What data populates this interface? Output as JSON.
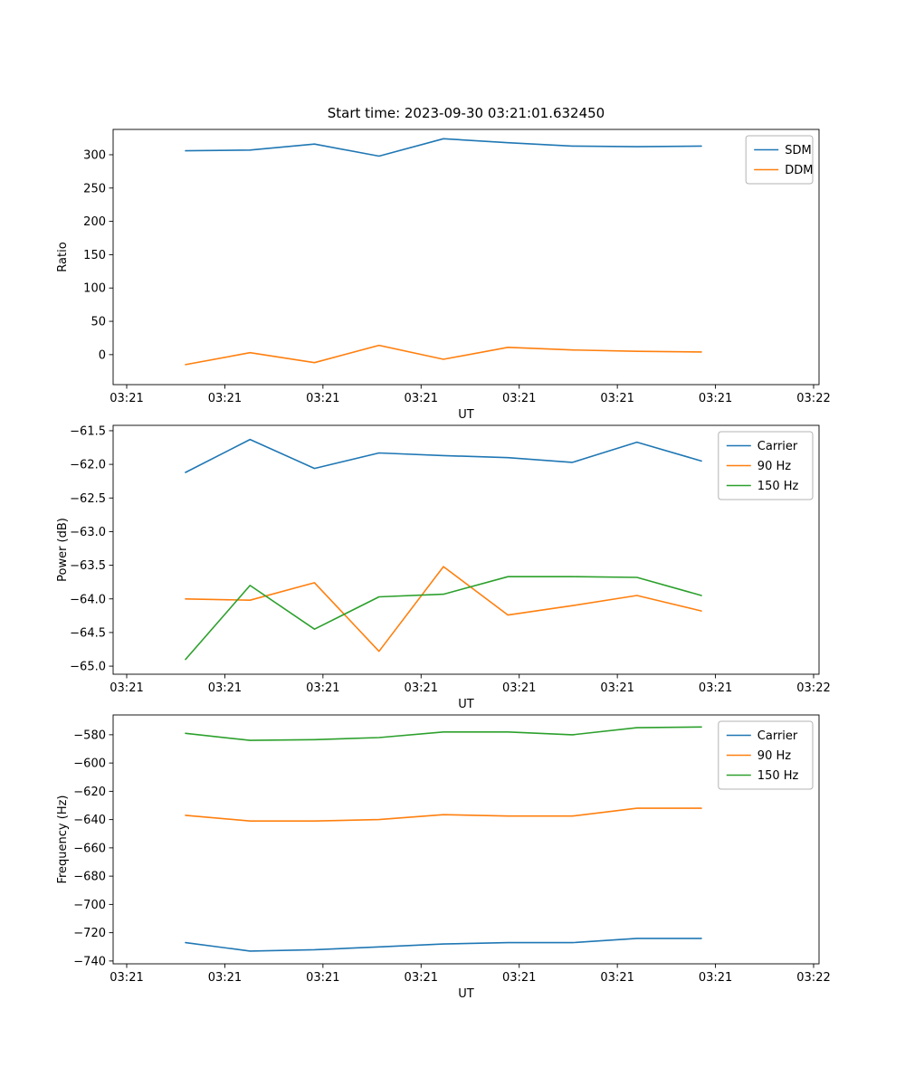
{
  "figure": {
    "title": "Start time: 2023-09-30 03:21:01.632450"
  },
  "chart_data": [
    {
      "type": "line",
      "title": "Start time: 2023-09-30 03:21:01.632450",
      "xlabel": "UT",
      "ylabel": "Ratio",
      "x_tick_labels": [
        "03:21",
        "03:21",
        "03:21",
        "03:21",
        "03:21",
        "03:21",
        "03:21",
        "03:22"
      ],
      "y_tick_values": [
        0,
        50,
        100,
        150,
        200,
        250,
        300
      ],
      "y_tick_labels": [
        "0",
        "50",
        "100",
        "150",
        "200",
        "250",
        "300"
      ],
      "ylim": [
        -45,
        338
      ],
      "grid": false,
      "legend_position": "upper right",
      "series": [
        {
          "name": "SDM",
          "color": "#1f77b4",
          "values": [
            306,
            307,
            316,
            298,
            324,
            318,
            313,
            312,
            313
          ]
        },
        {
          "name": "DDM",
          "color": "#ff7f0e",
          "values": [
            -15,
            3,
            -12,
            14,
            -7,
            11,
            7,
            5,
            4
          ]
        }
      ]
    },
    {
      "type": "line",
      "title": "",
      "xlabel": "UT",
      "ylabel": "Power (dB)",
      "x_tick_labels": [
        "03:21",
        "03:21",
        "03:21",
        "03:21",
        "03:21",
        "03:21",
        "03:21",
        "03:22"
      ],
      "y_tick_values": [
        -65.0,
        -64.5,
        -64.0,
        -63.5,
        -63.0,
        -62.5,
        -62.0,
        -61.5
      ],
      "y_tick_labels": [
        "−65.0",
        "−64.5",
        "−64.0",
        "−63.5",
        "−63.0",
        "−62.5",
        "−62.0",
        "−61.5"
      ],
      "ylim": [
        -65.12,
        -61.42
      ],
      "grid": false,
      "legend_position": "upper right",
      "series": [
        {
          "name": "Carrier",
          "color": "#1f77b4",
          "values": [
            -62.12,
            -61.63,
            -62.06,
            -61.83,
            -61.87,
            -61.9,
            -61.97,
            -61.67,
            -61.95
          ]
        },
        {
          "name": "90 Hz",
          "color": "#ff7f0e",
          "values": [
            -64.0,
            -64.02,
            -63.76,
            -64.78,
            -63.52,
            -64.24,
            -64.1,
            -63.95,
            -64.18
          ]
        },
        {
          "name": "150 Hz",
          "color": "#2ca02c",
          "values": [
            -64.9,
            -63.8,
            -64.45,
            -63.97,
            -63.93,
            -63.67,
            -63.67,
            -63.68,
            -63.95
          ]
        }
      ]
    },
    {
      "type": "line",
      "title": "",
      "xlabel": "UT",
      "ylabel": "Frequency (Hz)",
      "x_tick_labels": [
        "03:21",
        "03:21",
        "03:21",
        "03:21",
        "03:21",
        "03:21",
        "03:21",
        "03:22"
      ],
      "y_tick_values": [
        -740,
        -720,
        -700,
        -680,
        -660,
        -640,
        -620,
        -600,
        -580
      ],
      "y_tick_labels": [
        "−740",
        "−720",
        "−700",
        "−680",
        "−660",
        "−640",
        "−620",
        "−600",
        "−580"
      ],
      "ylim": [
        -742,
        -566
      ],
      "grid": false,
      "legend_position": "upper right",
      "series": [
        {
          "name": "Carrier",
          "color": "#1f77b4",
          "values": [
            -727,
            -733,
            -732,
            -730,
            -728,
            -727,
            -727,
            -724,
            -724
          ]
        },
        {
          "name": "90 Hz",
          "color": "#ff7f0e",
          "values": [
            -637,
            -641,
            -641,
            -640,
            -636.5,
            -637.5,
            -637.5,
            -632,
            -632
          ]
        },
        {
          "name": "150 Hz",
          "color": "#2ca02c",
          "values": [
            -579,
            -584,
            -583.5,
            -582,
            -578,
            -578,
            -580,
            -575,
            -574.5
          ]
        }
      ]
    }
  ]
}
